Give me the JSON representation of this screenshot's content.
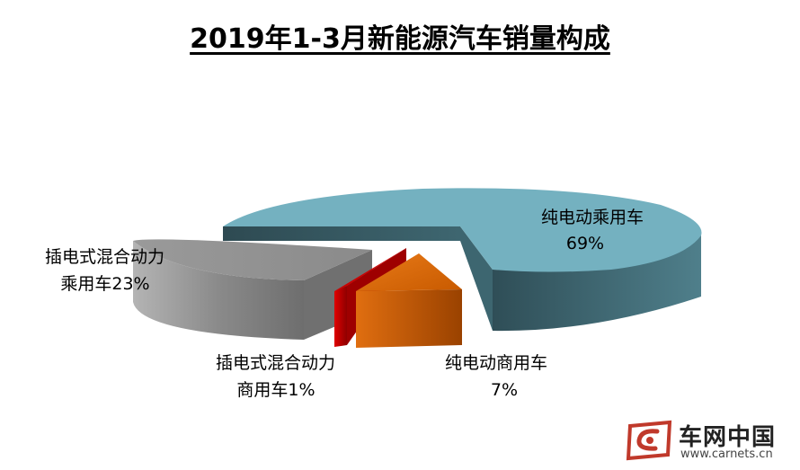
{
  "chart_data": {
    "type": "pie",
    "title": "2019年1-3月新能源汽车销量构成",
    "slices": [
      {
        "label": "纯电动乘用车",
        "pct_label": "69%",
        "value": 69,
        "color": "#74b1c0"
      },
      {
        "label": "纯电动商用车",
        "pct_label": "7%",
        "value": 7,
        "color": "#d45f00"
      },
      {
        "label": "插电式混合动力商用车",
        "label_line1": "插电式混合动力",
        "label_line2": "商用车1%",
        "value": 1,
        "color": "#cc0000"
      },
      {
        "label": "插电式混合动力乘用车",
        "label_line1": "插电式混合动力",
        "label_line2": "乘用车23%",
        "value": 23,
        "color": "#8c8c8c"
      }
    ]
  },
  "logo": {
    "text": "车网中国",
    "url": "www.carnets.cn"
  }
}
